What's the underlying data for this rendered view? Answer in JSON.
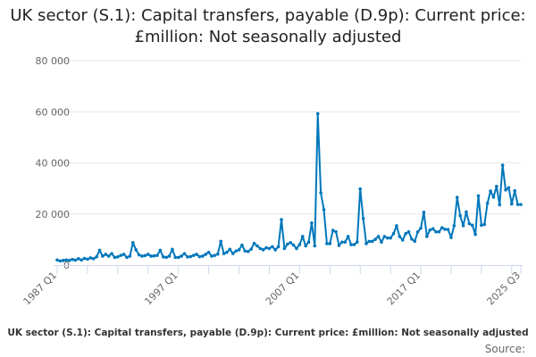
{
  "title": "UK sector (S.1): Capital transfers, payable (D.9p): Current price: £million: Not seasonally adjusted",
  "caption": "UK sector (S.1): Capital transfers, payable (D.9p): Current price: £million: Not seasonally adjusted",
  "source": "Source:",
  "chart_data": {
    "type": "line",
    "title": "UK sector (S.1): Capital transfers, payable (D.9p): Current price: £million: Not seasonally adjusted",
    "x_start": "1987 Q1",
    "x_end": "2025 Q3",
    "x_frequency": "quarterly",
    "x_tick_labels": [
      "1987 Q1",
      "1997 Q1",
      "2007 Q1",
      "2017 Q1",
      "2025 Q3"
    ],
    "y_tick_labels": [
      "0",
      "20 000",
      "40 000",
      "60 000",
      "80 000"
    ],
    "ylim": [
      0,
      80000
    ],
    "grid": true,
    "color": "#0077bb",
    "values": [
      2000,
      1600,
      1800,
      2000,
      1800,
      2200,
      1900,
      2500,
      2000,
      2600,
      2300,
      2800,
      2500,
      3200,
      5800,
      3500,
      4200,
      3500,
      4500,
      3000,
      3200,
      3800,
      4200,
      3000,
      3500,
      8800,
      6000,
      4000,
      3500,
      3700,
      4200,
      3500,
      3600,
      3800,
      5800,
      3200,
      3000,
      3500,
      6200,
      3000,
      3000,
      3500,
      4500,
      3200,
      3300,
      3800,
      4200,
      3300,
      3500,
      4200,
      5000,
      3500,
      3800,
      4300,
      9300,
      4500,
      5000,
      6200,
      4500,
      5500,
      6000,
      7800,
      5500,
      5300,
      6200,
      8500,
      7500,
      6500,
      6000,
      6800,
      6500,
      7200,
      6000,
      7200,
      17800,
      6500,
      8200,
      8800,
      7800,
      6500,
      8000,
      11200,
      7500,
      9000,
      16500,
      7500,
      59300,
      28300,
      21700,
      8400,
      8400,
      13600,
      13000,
      7700,
      9000,
      9000,
      11200,
      8000,
      8000,
      9000,
      29800,
      18200,
      8400,
      9300,
      9300,
      10100,
      11200,
      9000,
      11200,
      10600,
      10600,
      12300,
      15400,
      11200,
      9800,
      12300,
      13000,
      10200,
      9300,
      13000,
      14400,
      20700,
      11200,
      13700,
      14200,
      13000,
      13000,
      14600,
      14000,
      13900,
      10800,
      15400,
      26500,
      19300,
      15400,
      20800,
      16200,
      15600,
      12000,
      27100,
      15600,
      15900,
      24200,
      29000,
      26600,
      30800,
      23600,
      39100,
      29400,
      30300,
      23900,
      29100,
      23700,
      23700
    ]
  }
}
